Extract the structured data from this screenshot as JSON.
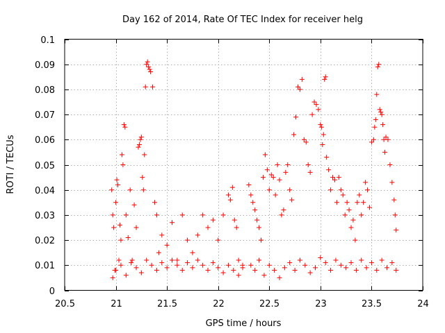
{
  "chart_data": {
    "type": "scatter",
    "title": "Day 162 of 2014, Rate Of TEC Index for receiver helg",
    "xlabel": "GPS time / hours",
    "ylabel": "ROTI / TECUs",
    "xlim": [
      20.5,
      24
    ],
    "ylim": [
      0,
      0.1
    ],
    "x_ticks": [
      20.5,
      21,
      21.5,
      22,
      22.5,
      23,
      23.5,
      24
    ],
    "x_tick_labels": [
      "20.5",
      "21",
      "21.5",
      "22",
      "22.5",
      "23",
      "23.5",
      "24"
    ],
    "y_ticks": [
      0,
      0.01,
      0.02,
      0.03,
      0.04,
      0.05,
      0.06,
      0.07,
      0.08,
      0.09,
      0.1
    ],
    "y_tick_labels": [
      "0",
      "0.01",
      "0.02",
      "0.03",
      "0.04",
      "0.05",
      "0.06",
      "0.07",
      "0.08",
      "0.09",
      "0.1"
    ],
    "grid": true,
    "marker": "+",
    "marker_color": "#ff0000",
    "series": [
      {
        "name": "ROTI",
        "points": [
          [
            20.96,
            0.04
          ],
          [
            20.97,
            0.03
          ],
          [
            20.98,
            0.025
          ],
          [
            20.99,
            0.008
          ],
          [
            21.0,
            0.035
          ],
          [
            21.01,
            0.044
          ],
          [
            21.02,
            0.042
          ],
          [
            21.03,
            0.012
          ],
          [
            21.04,
            0.026
          ],
          [
            21.05,
            0.02
          ],
          [
            21.06,
            0.054
          ],
          [
            21.07,
            0.05
          ],
          [
            21.08,
            0.066
          ],
          [
            21.09,
            0.065
          ],
          [
            21.1,
            0.03
          ],
          [
            21.12,
            0.021
          ],
          [
            21.14,
            0.04
          ],
          [
            21.16,
            0.012
          ],
          [
            21.18,
            0.034
          ],
          [
            21.2,
            0.025
          ],
          [
            21.22,
            0.057
          ],
          [
            21.23,
            0.058
          ],
          [
            21.24,
            0.06
          ],
          [
            21.25,
            0.061
          ],
          [
            21.26,
            0.045
          ],
          [
            21.27,
            0.04
          ],
          [
            21.28,
            0.054
          ],
          [
            21.29,
            0.081
          ],
          [
            21.3,
            0.09
          ],
          [
            21.31,
            0.091
          ],
          [
            21.32,
            0.089
          ],
          [
            21.33,
            0.088
          ],
          [
            21.34,
            0.087
          ],
          [
            21.36,
            0.081
          ],
          [
            21.38,
            0.035
          ],
          [
            21.4,
            0.03
          ],
          [
            21.42,
            0.015
          ],
          [
            21.45,
            0.022
          ],
          [
            21.5,
            0.018
          ],
          [
            21.55,
            0.027
          ],
          [
            21.6,
            0.012
          ],
          [
            21.65,
            0.03
          ],
          [
            21.7,
            0.02
          ],
          [
            21.75,
            0.015
          ],
          [
            21.8,
            0.022
          ],
          [
            21.85,
            0.03
          ],
          [
            21.9,
            0.025
          ],
          [
            21.95,
            0.028
          ],
          [
            22.0,
            0.02
          ],
          [
            22.05,
            0.03
          ],
          [
            22.1,
            0.038
          ],
          [
            22.12,
            0.036
          ],
          [
            22.14,
            0.041
          ],
          [
            22.16,
            0.028
          ],
          [
            22.18,
            0.025
          ],
          [
            22.2,
            0.012
          ],
          [
            22.24,
            0.01
          ],
          [
            22.3,
            0.042
          ],
          [
            22.32,
            0.038
          ],
          [
            22.34,
            0.035
          ],
          [
            22.36,
            0.032
          ],
          [
            22.38,
            0.028
          ],
          [
            22.4,
            0.025
          ],
          [
            22.42,
            0.02
          ],
          [
            22.44,
            0.045
          ],
          [
            22.46,
            0.054
          ],
          [
            22.48,
            0.048
          ],
          [
            22.5,
            0.04
          ],
          [
            22.52,
            0.046
          ],
          [
            22.54,
            0.045
          ],
          [
            22.56,
            0.038
          ],
          [
            22.58,
            0.05
          ],
          [
            22.6,
            0.044
          ],
          [
            22.62,
            0.03
          ],
          [
            22.64,
            0.032
          ],
          [
            22.66,
            0.047
          ],
          [
            22.68,
            0.05
          ],
          [
            22.7,
            0.04
          ],
          [
            22.72,
            0.036
          ],
          [
            22.74,
            0.062
          ],
          [
            22.76,
            0.069
          ],
          [
            22.78,
            0.081
          ],
          [
            22.8,
            0.08
          ],
          [
            22.82,
            0.084
          ],
          [
            22.84,
            0.06
          ],
          [
            22.86,
            0.059
          ],
          [
            22.88,
            0.05
          ],
          [
            22.9,
            0.047
          ],
          [
            22.92,
            0.07
          ],
          [
            22.94,
            0.075
          ],
          [
            22.96,
            0.074
          ],
          [
            22.98,
            0.072
          ],
          [
            23.0,
            0.066
          ],
          [
            23.01,
            0.065
          ],
          [
            23.02,
            0.058
          ],
          [
            23.03,
            0.062
          ],
          [
            23.04,
            0.084
          ],
          [
            23.05,
            0.085
          ],
          [
            23.06,
            0.053
          ],
          [
            23.08,
            0.048
          ],
          [
            23.1,
            0.04
          ],
          [
            23.12,
            0.045
          ],
          [
            23.14,
            0.044
          ],
          [
            23.16,
            0.035
          ],
          [
            23.18,
            0.045
          ],
          [
            23.2,
            0.04
          ],
          [
            23.22,
            0.038
          ],
          [
            23.24,
            0.03
          ],
          [
            23.26,
            0.035
          ],
          [
            23.28,
            0.032
          ],
          [
            23.3,
            0.025
          ],
          [
            23.32,
            0.028
          ],
          [
            23.34,
            0.02
          ],
          [
            23.36,
            0.035
          ],
          [
            23.38,
            0.038
          ],
          [
            23.4,
            0.03
          ],
          [
            23.42,
            0.035
          ],
          [
            23.44,
            0.043
          ],
          [
            23.46,
            0.04
          ],
          [
            23.48,
            0.033
          ],
          [
            23.5,
            0.059
          ],
          [
            23.52,
            0.06
          ],
          [
            23.53,
            0.065
          ],
          [
            23.54,
            0.068
          ],
          [
            23.55,
            0.078
          ],
          [
            23.56,
            0.089
          ],
          [
            23.57,
            0.09
          ],
          [
            23.58,
            0.072
          ],
          [
            23.59,
            0.071
          ],
          [
            23.6,
            0.07
          ],
          [
            23.61,
            0.066
          ],
          [
            23.62,
            0.06
          ],
          [
            23.63,
            0.055
          ],
          [
            23.64,
            0.061
          ],
          [
            23.66,
            0.06
          ],
          [
            23.68,
            0.05
          ],
          [
            23.7,
            0.043
          ],
          [
            23.72,
            0.036
          ],
          [
            23.73,
            0.03
          ],
          [
            23.74,
            0.024
          ],
          [
            20.97,
            0.005
          ],
          [
            21.0,
            0.008
          ],
          [
            21.05,
            0.01
          ],
          [
            21.1,
            0.006
          ],
          [
            21.15,
            0.011
          ],
          [
            21.2,
            0.009
          ],
          [
            21.25,
            0.007
          ],
          [
            21.3,
            0.012
          ],
          [
            21.35,
            0.01
          ],
          [
            21.4,
            0.008
          ],
          [
            21.45,
            0.011
          ],
          [
            21.5,
            0.009
          ],
          [
            21.55,
            0.012
          ],
          [
            21.6,
            0.01
          ],
          [
            21.65,
            0.008
          ],
          [
            21.7,
            0.011
          ],
          [
            21.75,
            0.009
          ],
          [
            21.8,
            0.012
          ],
          [
            21.85,
            0.01
          ],
          [
            21.9,
            0.008
          ],
          [
            21.95,
            0.011
          ],
          [
            22.0,
            0.009
          ],
          [
            22.05,
            0.007
          ],
          [
            22.1,
            0.01
          ],
          [
            22.15,
            0.008
          ],
          [
            22.2,
            0.006
          ],
          [
            22.24,
            0.009
          ],
          [
            22.32,
            0.01
          ],
          [
            22.36,
            0.008
          ],
          [
            22.4,
            0.012
          ],
          [
            22.45,
            0.006
          ],
          [
            22.5,
            0.01
          ],
          [
            22.55,
            0.008
          ],
          [
            22.6,
            0.005
          ],
          [
            22.65,
            0.009
          ],
          [
            22.7,
            0.011
          ],
          [
            22.75,
            0.008
          ],
          [
            22.8,
            0.012
          ],
          [
            22.85,
            0.01
          ],
          [
            22.9,
            0.007
          ],
          [
            22.95,
            0.009
          ],
          [
            23.0,
            0.013
          ],
          [
            23.05,
            0.011
          ],
          [
            23.1,
            0.008
          ],
          [
            23.15,
            0.012
          ],
          [
            23.2,
            0.01
          ],
          [
            23.25,
            0.009
          ],
          [
            23.3,
            0.011
          ],
          [
            23.35,
            0.008
          ],
          [
            23.4,
            0.012
          ],
          [
            23.45,
            0.009
          ],
          [
            23.5,
            0.011
          ],
          [
            23.55,
            0.008
          ],
          [
            23.6,
            0.012
          ],
          [
            23.65,
            0.009
          ],
          [
            23.7,
            0.011
          ],
          [
            23.74,
            0.008
          ]
        ]
      }
    ]
  }
}
